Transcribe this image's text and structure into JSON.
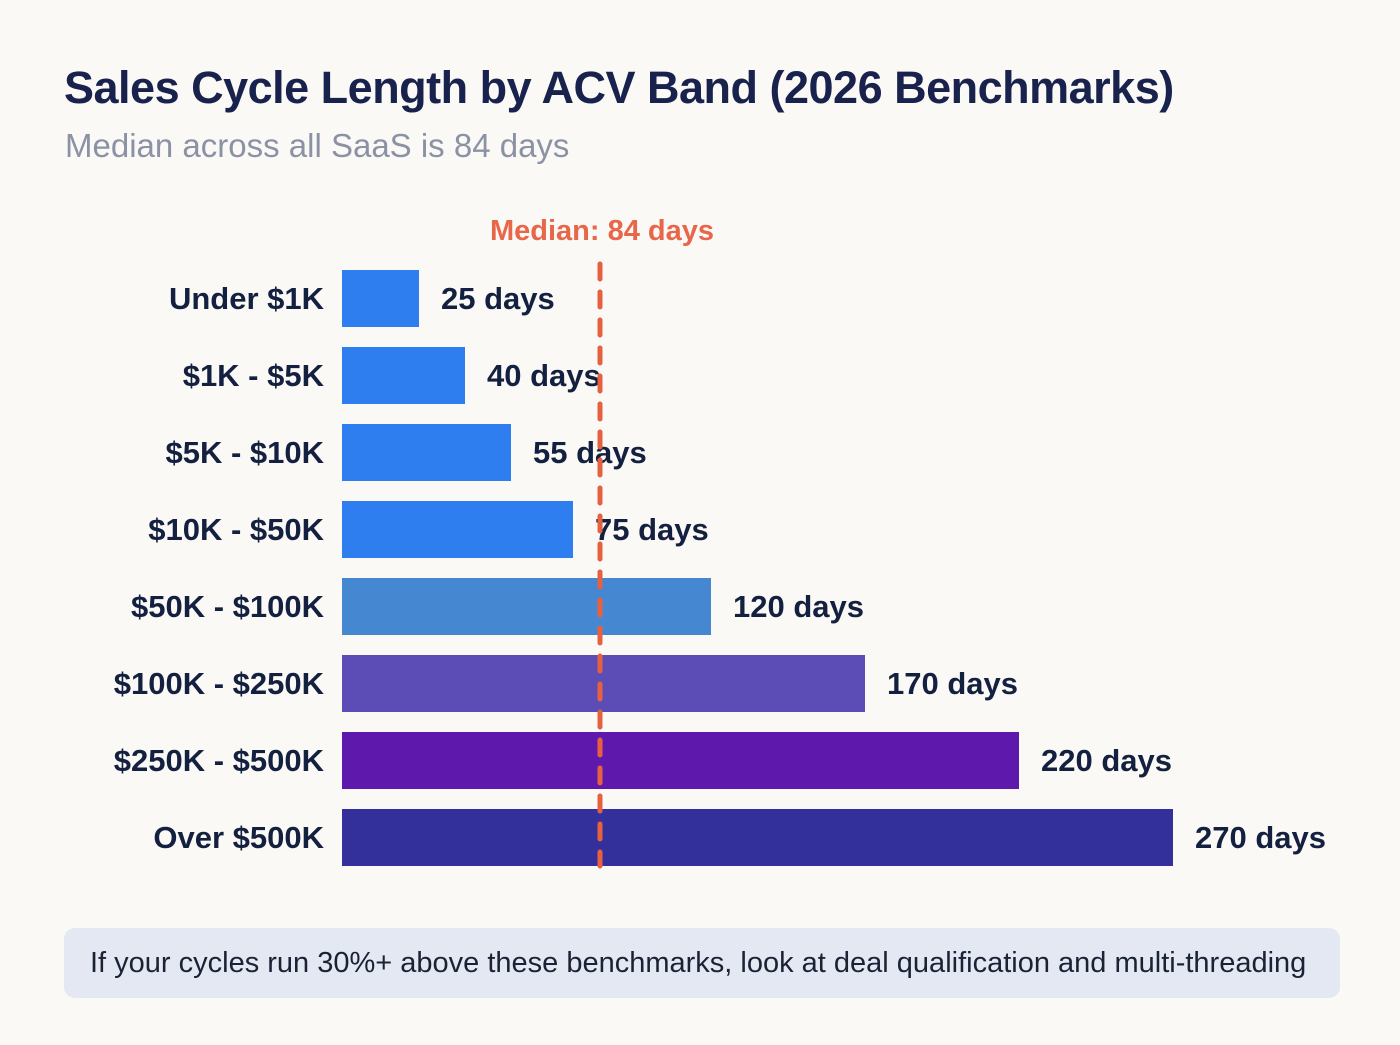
{
  "page": {
    "title": "Sales Cycle Length by ACV Band (2026 Benchmarks)",
    "subtitle": "Median across all SaaS is 84 days",
    "note": "If your cycles run 30%+ above these benchmarks, look at deal qualification and multi-threading",
    "background_color": "#FAF9F6",
    "note_background_color": "#E4E8F2",
    "text_color": "#142040"
  },
  "chart_data": {
    "type": "bar",
    "orientation": "horizontal",
    "title": "Sales Cycle Length by ACV Band (2026 Benchmarks)",
    "subtitle": "Median across all SaaS is 84 days",
    "unit": "days",
    "categories": [
      "Under $1K",
      "$1K - $5K",
      "$5K - $10K",
      "$10K - $50K",
      "$50K - $100K",
      "$100K - $250K",
      "$250K - $500K",
      "Over $500K"
    ],
    "values": [
      25,
      40,
      55,
      75,
      120,
      170,
      220,
      270
    ],
    "value_labels": [
      "25 days",
      "40 days",
      "55 days",
      "75 days",
      "120 days",
      "170 days",
      "220 days",
      "270 days"
    ],
    "bar_colors": [
      "#2E7EF0",
      "#2E7EF0",
      "#2E7EF0",
      "#2E7EF0",
      "#4587D0",
      "#5B4CB6",
      "#5E18AC",
      "#34309B"
    ],
    "median": {
      "value": 84,
      "label": "Median: 84 days",
      "label_color": "#E8664A",
      "line_color": "#E5613F"
    },
    "xlim": [
      0,
      330
    ],
    "grid": false,
    "legend": false
  }
}
